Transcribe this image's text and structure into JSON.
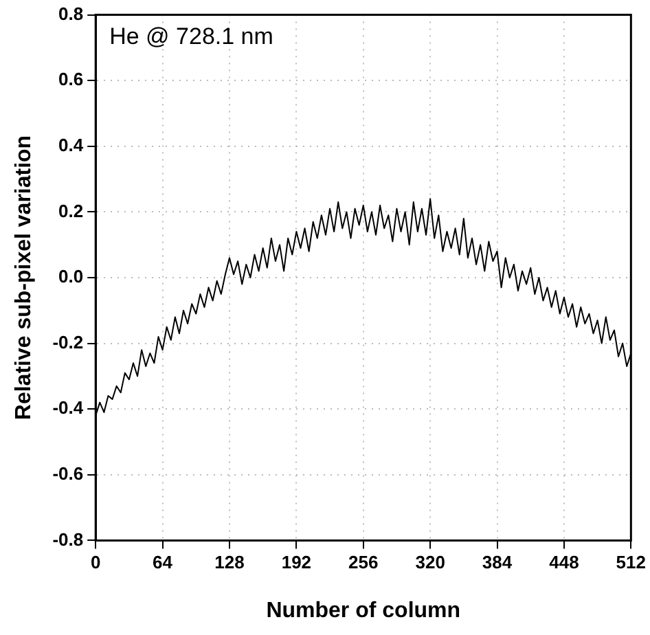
{
  "chart_data": {
    "type": "line",
    "xlabel": "Number of column",
    "ylabel": "Relative sub-pixel variation",
    "annotations": [
      "He @ 728.1 nm"
    ],
    "xlim": [
      0,
      512
    ],
    "xticks": [
      0,
      64,
      128,
      192,
      256,
      320,
      384,
      448,
      512
    ],
    "ylim": [
      -0.8,
      0.8
    ],
    "yticks": [
      -0.8,
      -0.6,
      -0.4,
      -0.2,
      {
        "value": 0,
        "label": "0.0"
      },
      0.2,
      0.4,
      0.6,
      0.8
    ],
    "grid": true,
    "legend": false,
    "marker": "none",
    "line_style": "solid",
    "series": [
      {
        "color": "#000000",
        "x": [
          0,
          4,
          8,
          12,
          16,
          20,
          24,
          28,
          32,
          36,
          40,
          44,
          48,
          52,
          56,
          60,
          64,
          68,
          72,
          76,
          80,
          84,
          88,
          92,
          96,
          100,
          104,
          108,
          112,
          116,
          120,
          124,
          128,
          132,
          136,
          140,
          144,
          148,
          152,
          156,
          160,
          164,
          168,
          172,
          176,
          180,
          184,
          188,
          192,
          196,
          200,
          204,
          208,
          212,
          216,
          220,
          224,
          228,
          232,
          236,
          240,
          244,
          248,
          252,
          256,
          260,
          264,
          268,
          272,
          276,
          280,
          284,
          288,
          292,
          296,
          300,
          304,
          308,
          312,
          316,
          320,
          324,
          328,
          332,
          336,
          340,
          344,
          348,
          352,
          356,
          360,
          364,
          368,
          372,
          376,
          380,
          384,
          388,
          392,
          396,
          400,
          404,
          408,
          412,
          416,
          420,
          424,
          428,
          432,
          436,
          440,
          444,
          448,
          452,
          456,
          460,
          464,
          468,
          472,
          476,
          480,
          484,
          488,
          492,
          496,
          500,
          504,
          508,
          512
        ],
        "values": [
          -0.42,
          -0.38,
          -0.41,
          -0.36,
          -0.37,
          -0.33,
          -0.35,
          -0.29,
          -0.31,
          -0.26,
          -0.3,
          -0.22,
          -0.27,
          -0.23,
          -0.26,
          -0.18,
          -0.22,
          -0.15,
          -0.19,
          -0.12,
          -0.17,
          -0.1,
          -0.14,
          -0.08,
          -0.11,
          -0.05,
          -0.09,
          -0.03,
          -0.07,
          -0.01,
          -0.05,
          0.01,
          0.06,
          0.01,
          0.05,
          -0.02,
          0.04,
          0.0,
          0.07,
          0.02,
          0.09,
          0.03,
          0.12,
          0.05,
          0.1,
          0.02,
          0.12,
          0.07,
          0.14,
          0.09,
          0.15,
          0.08,
          0.17,
          0.12,
          0.19,
          0.13,
          0.21,
          0.14,
          0.23,
          0.15,
          0.2,
          0.12,
          0.21,
          0.16,
          0.22,
          0.14,
          0.2,
          0.13,
          0.22,
          0.15,
          0.19,
          0.11,
          0.21,
          0.14,
          0.2,
          0.1,
          0.23,
          0.14,
          0.21,
          0.13,
          0.24,
          0.12,
          0.19,
          0.08,
          0.14,
          0.09,
          0.15,
          0.07,
          0.18,
          0.06,
          0.12,
          0.04,
          0.1,
          0.02,
          0.11,
          0.05,
          0.08,
          -0.03,
          0.06,
          0.0,
          0.04,
          -0.04,
          0.02,
          -0.02,
          0.03,
          -0.05,
          0.0,
          -0.07,
          -0.03,
          -0.09,
          -0.04,
          -0.11,
          -0.06,
          -0.12,
          -0.08,
          -0.15,
          -0.09,
          -0.14,
          -0.11,
          -0.17,
          -0.13,
          -0.2,
          -0.12,
          -0.19,
          -0.16,
          -0.24,
          -0.2,
          -0.27,
          -0.23
        ]
      }
    ]
  }
}
